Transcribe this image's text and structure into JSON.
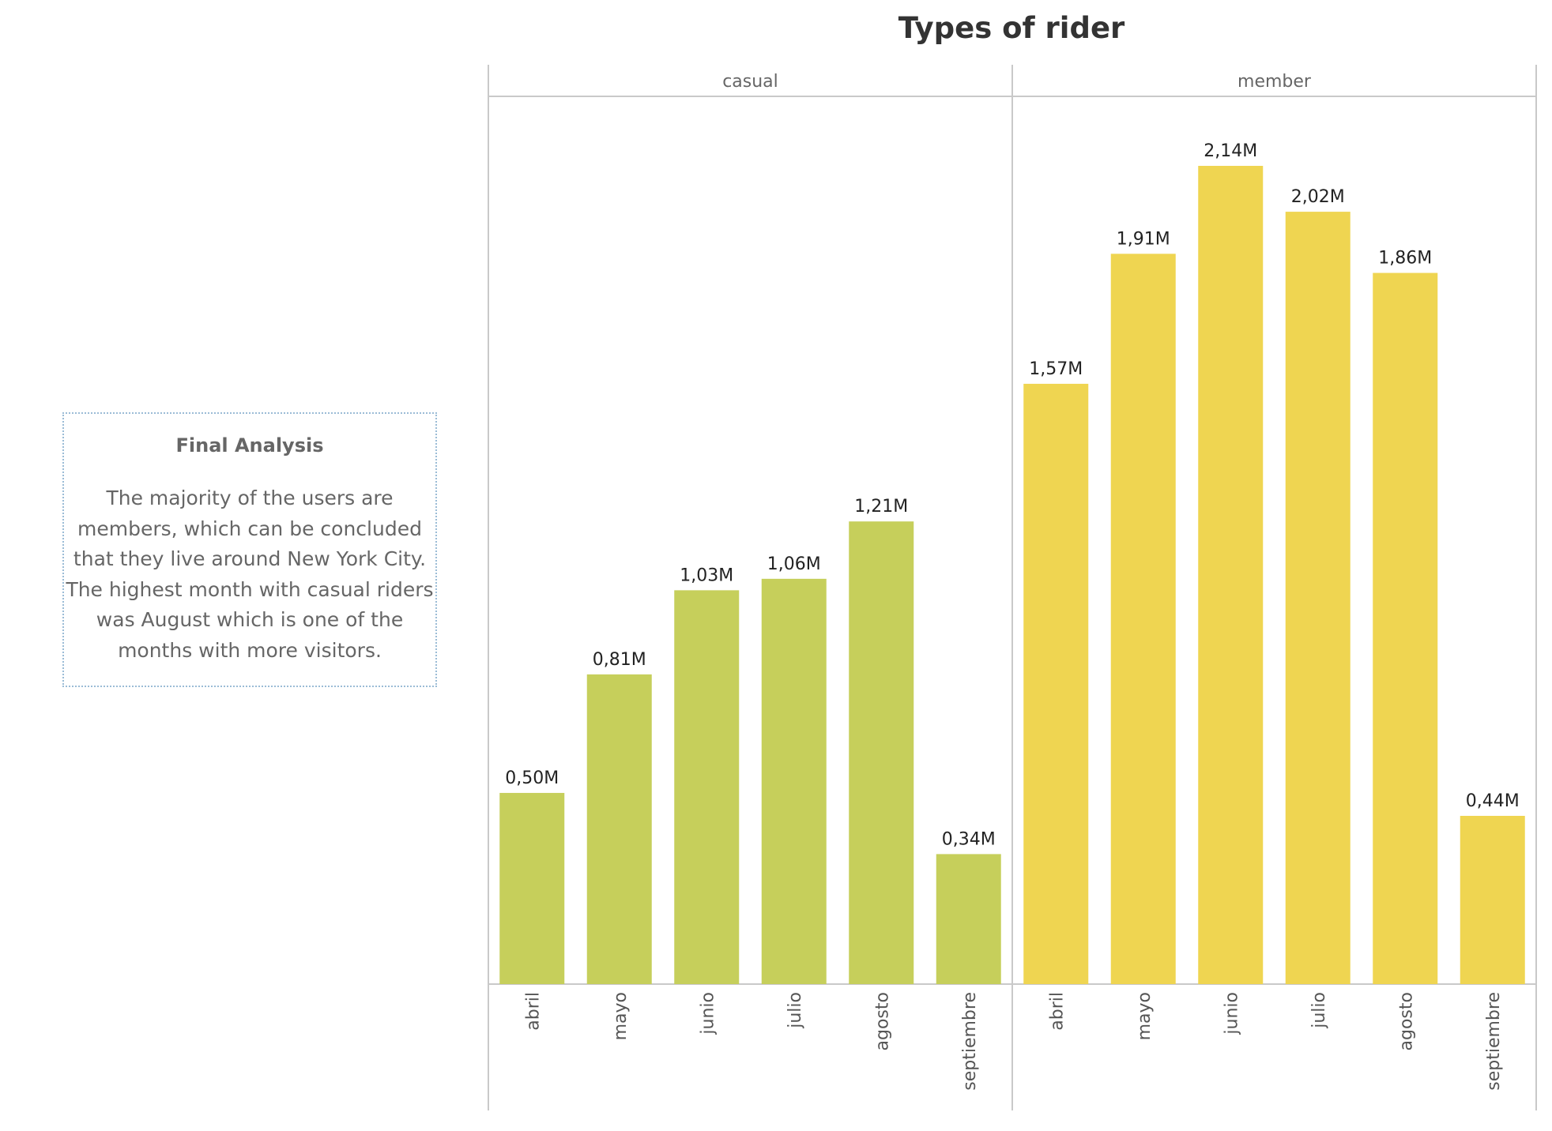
{
  "chart_data": {
    "type": "bar",
    "title": "Types of rider",
    "categories": [
      "abril",
      "mayo",
      "junio",
      "julio",
      "agosto",
      "septiembre"
    ],
    "series": [
      {
        "name": "casual",
        "values": [
          0.5,
          0.81,
          1.03,
          1.06,
          1.21,
          0.34
        ],
        "labels": [
          "0,50M",
          "0,81M",
          "1,03M",
          "1,06M",
          "1,21M",
          "0,34M"
        ],
        "color": "#c6cf5b"
      },
      {
        "name": "member",
        "values": [
          1.57,
          1.91,
          2.14,
          2.02,
          1.86,
          0.44
        ],
        "labels": [
          "1,57M",
          "1,91M",
          "2,14M",
          "2,02M",
          "1,86M",
          "0,44M"
        ],
        "color": "#efd551"
      }
    ],
    "units": "M",
    "ylim": [
      0,
      2.3
    ],
    "grid": false,
    "frame_color": "#c9c9c9"
  },
  "annotation": {
    "title": "Final Analysis",
    "text": "The majority of the users are members, which can be concluded that they live around New York City. The highest month with casual riders was August which is one of the months with more visitors.",
    "border_color": "#9bbcd6"
  }
}
